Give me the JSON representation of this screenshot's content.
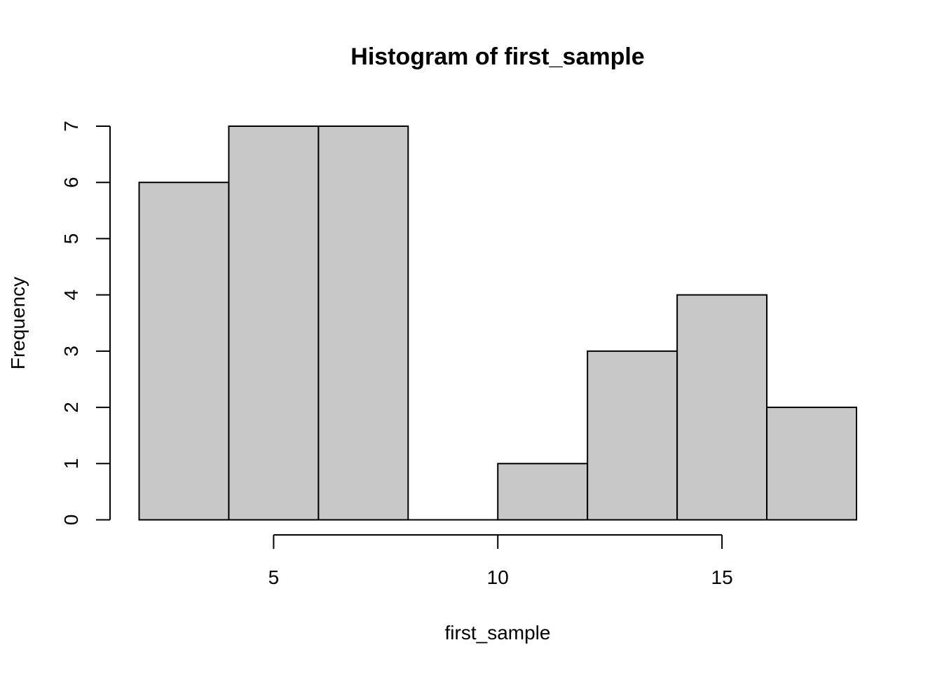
{
  "chart_data": {
    "type": "bar",
    "title": "Histogram of first_sample",
    "xlabel": "first_sample",
    "ylabel": "Frequency",
    "bins": [
      {
        "start": 2,
        "end": 4,
        "count": 6
      },
      {
        "start": 4,
        "end": 6,
        "count": 7
      },
      {
        "start": 6,
        "end": 8,
        "count": 7
      },
      {
        "start": 8,
        "end": 10,
        "count": 0
      },
      {
        "start": 10,
        "end": 12,
        "count": 1
      },
      {
        "start": 12,
        "end": 14,
        "count": 3
      },
      {
        "start": 14,
        "end": 16,
        "count": 4
      },
      {
        "start": 16,
        "end": 18,
        "count": 2
      }
    ],
    "x_ticks": [
      5,
      10,
      15
    ],
    "y_ticks": [
      0,
      1,
      2,
      3,
      4,
      5,
      6,
      7
    ],
    "xlim": [
      2,
      18
    ],
    "ylim": [
      0,
      7
    ],
    "bar_color": "#c8c8c8",
    "edge_color": "#000000",
    "grid": false,
    "legend": "none"
  }
}
